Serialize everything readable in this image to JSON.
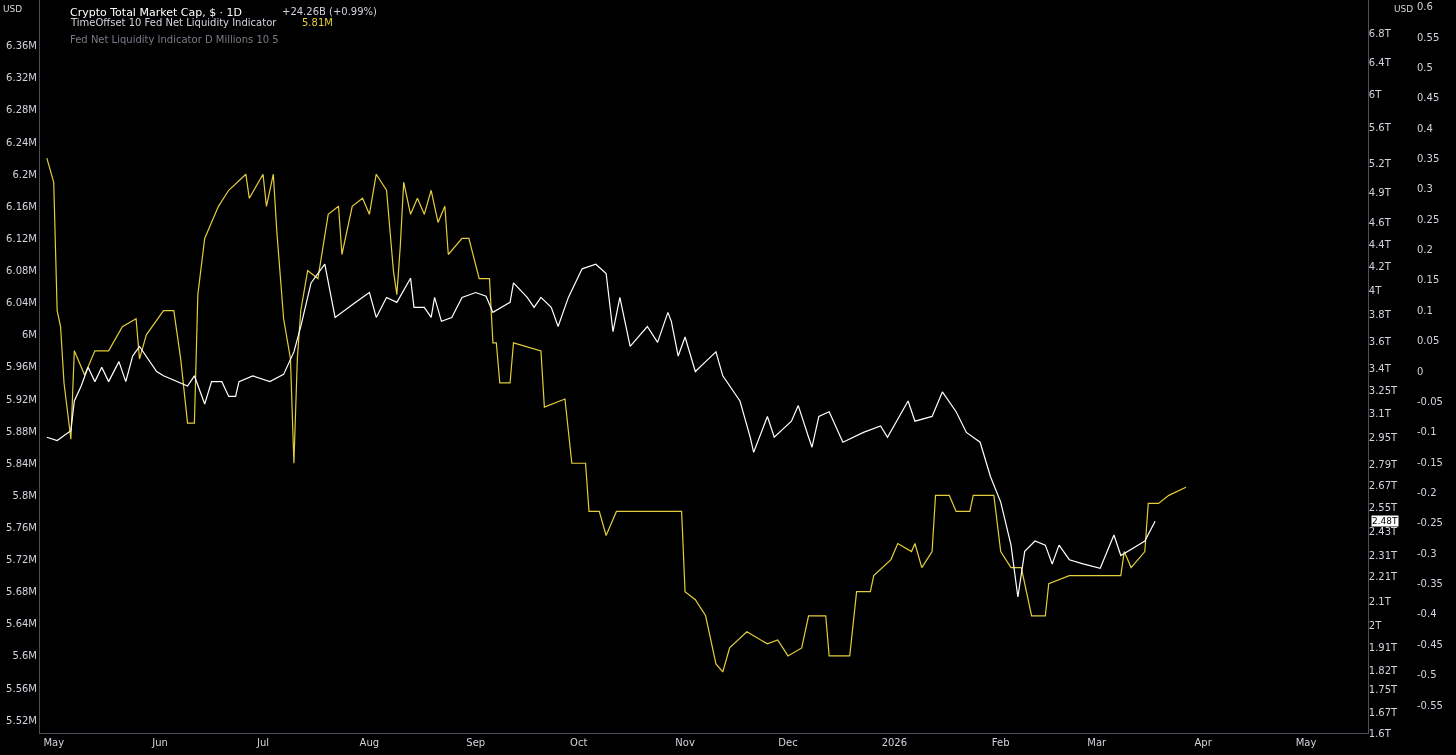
{
  "chart_data": {
    "type": "line",
    "title": "Crypto Total Market Cap, $ · 1D",
    "subtitle": "TimeOffset 10 Fed Net Liquidity Indicator",
    "annotations": [
      "+24.26B (+0.99%)",
      "5.81M",
      "Fed Net Liquidity Indicator D Millions 10 5",
      "USD",
      "USD",
      "2.48T"
    ],
    "series": [
      {
        "color": "#e3cd3c",
        "axis": "y",
        "x": [
          "2025-04-29",
          "2025-05-01",
          "2025-05-02",
          "2025-05-03",
          "2025-05-04",
          "2025-05-06",
          "2025-05-07",
          "2025-05-10",
          "2025-05-13",
          "2025-05-17",
          "2025-05-21",
          "2025-05-25",
          "2025-05-26",
          "2025-05-28",
          "2025-06-02",
          "2025-06-05",
          "2025-06-07",
          "2025-06-09",
          "2025-06-11",
          "2025-06-12",
          "2025-06-14",
          "2025-06-18",
          "2025-06-21",
          "2025-06-26",
          "2025-06-27",
          "2025-07-01",
          "2025-07-02",
          "2025-07-04",
          "2025-07-05",
          "2025-07-07",
          "2025-07-09",
          "2025-07-10",
          "2025-07-11",
          "2025-07-12",
          "2025-07-14",
          "2025-07-17",
          "2025-07-20",
          "2025-07-23",
          "2025-07-24",
          "2025-07-27",
          "2025-07-30",
          "2025-08-01",
          "2025-08-03",
          "2025-08-06",
          "2025-08-08",
          "2025-08-09",
          "2025-08-10",
          "2025-08-11",
          "2025-08-13",
          "2025-08-15",
          "2025-08-17",
          "2025-08-19",
          "2025-08-21",
          "2025-08-23",
          "2025-08-24",
          "2025-08-28",
          "2025-08-30",
          "2025-09-02",
          "2025-09-05",
          "2025-09-06",
          "2025-09-07",
          "2025-09-08",
          "2025-09-11",
          "2025-09-12",
          "2025-09-20",
          "2025-09-21",
          "2025-09-27",
          "2025-09-29",
          "2025-10-03",
          "2025-10-04",
          "2025-10-07",
          "2025-10-09",
          "2025-10-12",
          "2025-10-16",
          "2025-10-31",
          "2025-11-01",
          "2025-11-04",
          "2025-11-07",
          "2025-11-08",
          "2025-11-10",
          "2025-11-12",
          "2025-11-14",
          "2025-11-19",
          "2025-11-25",
          "2025-11-28",
          "2025-12-01",
          "2025-12-05",
          "2025-12-07",
          "2025-12-12",
          "2025-12-13",
          "2025-12-19",
          "2025-12-21",
          "2025-12-25",
          "2025-12-26",
          "2025-12-31",
          "2026-01-02",
          "2026-01-06",
          "2026-01-07",
          "2026-01-09",
          "2026-01-12",
          "2026-01-13",
          "2026-01-17",
          "2026-01-19",
          "2026-01-23",
          "2026-01-24",
          "2026-01-30",
          "2026-02-01",
          "2026-02-04",
          "2026-02-07",
          "2026-02-10",
          "2026-02-14",
          "2026-02-15",
          "2026-02-21",
          "2026-03-08",
          "2026-03-09",
          "2026-03-11",
          "2026-03-15",
          "2026-03-16",
          "2026-03-19",
          "2026-03-22",
          "2026-03-27"
        ],
        "values": [
          6.22,
          6.19,
          6.03,
          6.01,
          5.94,
          5.87,
          5.98,
          5.95,
          5.98,
          5.98,
          6.01,
          6.02,
          5.97,
          6.0,
          6.03,
          6.03,
          5.97,
          5.89,
          5.89,
          6.05,
          6.12,
          6.16,
          6.18,
          6.2,
          6.17,
          6.2,
          6.16,
          6.2,
          6.13,
          6.02,
          5.97,
          5.84,
          5.97,
          6.03,
          6.08,
          6.07,
          6.15,
          6.16,
          6.1,
          6.16,
          6.17,
          6.15,
          6.2,
          6.18,
          6.08,
          6.05,
          6.11,
          6.19,
          6.15,
          6.17,
          6.15,
          6.18,
          6.14,
          6.16,
          6.1,
          6.12,
          6.12,
          6.07,
          6.07,
          5.99,
          5.99,
          5.94,
          5.94,
          5.99,
          5.98,
          5.91,
          5.92,
          5.84,
          5.84,
          5.78,
          5.78,
          5.75,
          5.78,
          5.78,
          5.78,
          5.68,
          5.67,
          5.65,
          5.63,
          5.59,
          5.58,
          5.61,
          5.63,
          5.615,
          5.62,
          5.6,
          5.61,
          5.65,
          5.65,
          5.6,
          5.6,
          5.68,
          5.68,
          5.7,
          5.72,
          5.74,
          5.73,
          5.74,
          5.71,
          5.73,
          5.8,
          5.8,
          5.78,
          5.78,
          5.8,
          5.8,
          5.73,
          5.71,
          5.71,
          5.65,
          5.65,
          5.69,
          5.7,
          5.7,
          5.73,
          5.71,
          5.73,
          5.79,
          5.79,
          5.8,
          5.81
        ]
      },
      {
        "color": "#ffffff",
        "axis": "y2",
        "x": [
          "2025-04-29",
          "2025-05-02",
          "2025-05-06",
          "2025-05-07",
          "2025-05-09",
          "2025-05-11",
          "2025-05-13",
          "2025-05-15",
          "2025-05-17",
          "2025-05-20",
          "2025-05-22",
          "2025-05-24",
          "2025-05-26",
          "2025-05-31",
          "2025-06-02",
          "2025-06-09",
          "2025-06-11",
          "2025-06-14",
          "2025-06-16",
          "2025-06-19",
          "2025-06-21",
          "2025-06-23",
          "2025-06-24",
          "2025-06-28",
          "2025-07-03",
          "2025-07-07",
          "2025-07-10",
          "2025-07-12",
          "2025-07-15",
          "2025-07-19",
          "2025-07-22",
          "2025-07-28",
          "2025-08-01",
          "2025-08-03",
          "2025-08-06",
          "2025-08-09",
          "2025-08-13",
          "2025-08-14",
          "2025-08-17",
          "2025-08-19",
          "2025-08-20",
          "2025-08-22",
          "2025-08-25",
          "2025-08-28",
          "2025-09-01",
          "2025-09-04",
          "2025-09-06",
          "2025-09-11",
          "2025-09-12",
          "2025-09-16",
          "2025-09-18",
          "2025-09-20",
          "2025-09-23",
          "2025-09-25",
          "2025-09-28",
          "2025-10-02",
          "2025-10-06",
          "2025-10-09",
          "2025-10-11",
          "2025-10-13",
          "2025-10-16",
          "2025-10-21",
          "2025-10-24",
          "2025-10-27",
          "2025-10-28",
          "2025-10-30",
          "2025-11-01",
          "2025-11-04",
          "2025-11-07",
          "2025-11-10",
          "2025-11-12",
          "2025-11-17",
          "2025-11-20",
          "2025-11-21",
          "2025-11-25",
          "2025-11-27",
          "2025-12-02",
          "2025-12-04",
          "2025-12-07",
          "2025-12-08",
          "2025-12-10",
          "2025-12-13",
          "2025-12-17",
          "2025-12-23",
          "2025-12-28",
          "2025-12-30",
          "2026-01-05",
          "2026-01-07",
          "2026-01-12",
          "2026-01-15",
          "2026-01-19",
          "2026-01-22",
          "2026-01-26",
          "2026-01-29",
          "2026-02-01",
          "2026-02-04",
          "2026-02-06",
          "2026-02-08",
          "2026-02-11",
          "2026-02-14",
          "2026-02-16",
          "2026-02-18",
          "2026-02-21",
          "2026-02-25",
          "2026-03-02",
          "2026-03-06",
          "2026-03-08",
          "2026-03-13",
          "2026-03-15",
          "2026-03-18"
        ],
        "values": [
          2.95,
          2.93,
          2.99,
          3.18,
          3.28,
          3.41,
          3.31,
          3.41,
          3.31,
          3.45,
          3.31,
          3.49,
          3.56,
          3.38,
          3.35,
          3.28,
          3.35,
          3.16,
          3.31,
          3.31,
          3.21,
          3.21,
          3.31,
          3.35,
          3.31,
          3.36,
          3.52,
          3.71,
          4.06,
          4.22,
          3.78,
          3.9,
          3.98,
          3.78,
          3.94,
          3.9,
          4.1,
          3.86,
          3.86,
          3.78,
          3.94,
          3.75,
          3.78,
          3.94,
          3.98,
          3.95,
          3.82,
          3.9,
          4.06,
          3.94,
          3.86,
          3.94,
          3.86,
          3.71,
          3.94,
          4.18,
          4.22,
          4.14,
          3.67,
          3.94,
          3.56,
          3.71,
          3.59,
          3.82,
          3.75,
          3.49,
          3.63,
          3.38,
          3.45,
          3.52,
          3.35,
          3.18,
          2.95,
          2.86,
          3.08,
          2.95,
          3.05,
          3.15,
          2.95,
          2.89,
          3.08,
          3.11,
          2.92,
          2.98,
          3.02,
          2.95,
          3.18,
          3.05,
          3.08,
          3.24,
          3.11,
          2.98,
          2.92,
          2.72,
          2.58,
          2.36,
          2.12,
          2.33,
          2.38,
          2.36,
          2.27,
          2.36,
          2.29,
          2.27,
          2.25,
          2.41,
          2.31,
          2.36,
          2.38,
          2.48
        ]
      }
    ],
    "xlim": [
      "2025-04-27",
      "2026-05-19"
    ],
    "xticks": [
      {
        "value": "2025-05-01",
        "label": "May"
      },
      {
        "value": "2025-06-01",
        "label": "Jun"
      },
      {
        "value": "2025-07-01",
        "label": "Jul"
      },
      {
        "value": "2025-08-01",
        "label": "Aug"
      },
      {
        "value": "2025-09-01",
        "label": "Sep"
      },
      {
        "value": "2025-10-01",
        "label": "Oct"
      },
      {
        "value": "2025-11-01",
        "label": "Nov"
      },
      {
        "value": "2025-12-01",
        "label": "Dec"
      },
      {
        "value": "2026-01-01",
        "label": "2026"
      },
      {
        "value": "2026-02-01",
        "label": "Feb"
      },
      {
        "value": "2026-03-01",
        "label": "Mar"
      },
      {
        "value": "2026-04-01",
        "label": "Apr"
      },
      {
        "value": "2026-05-01",
        "label": "May"
      }
    ],
    "ylim": [
      5.504,
      6.417
    ],
    "yticks": [
      {
        "value": 6.36,
        "label": "6.36M"
      },
      {
        "value": 6.32,
        "label": "6.32M"
      },
      {
        "value": 6.28,
        "label": "6.28M"
      },
      {
        "value": 6.24,
        "label": "6.24M"
      },
      {
        "value": 6.2,
        "label": "6.2M"
      },
      {
        "value": 6.16,
        "label": "6.16M"
      },
      {
        "value": 6.12,
        "label": "6.12M"
      },
      {
        "value": 6.08,
        "label": "6.08M"
      },
      {
        "value": 6.04,
        "label": "6.04M"
      },
      {
        "value": 6.0,
        "label": "6M"
      },
      {
        "value": 5.96,
        "label": "5.96M"
      },
      {
        "value": 5.92,
        "label": "5.92M"
      },
      {
        "value": 5.88,
        "label": "5.88M"
      },
      {
        "value": 5.84,
        "label": "5.84M"
      },
      {
        "value": 5.8,
        "label": "5.8M"
      },
      {
        "value": 5.76,
        "label": "5.76M"
      },
      {
        "value": 5.72,
        "label": "5.72M"
      },
      {
        "value": 5.68,
        "label": "5.68M"
      },
      {
        "value": 5.64,
        "label": "5.64M"
      },
      {
        "value": 5.6,
        "label": "5.6M"
      },
      {
        "value": 5.56,
        "label": "5.56M"
      },
      {
        "value": 5.52,
        "label": "5.52M"
      }
    ],
    "y2lim": [
      1.6,
      7.29
    ],
    "y2ticks": [
      {
        "value": 6.8,
        "label": "6.8T"
      },
      {
        "value": 6.4,
        "label": "6.4T"
      },
      {
        "value": 6,
        "label": "6T"
      },
      {
        "value": 5.6,
        "label": "5.6T"
      },
      {
        "value": 5.2,
        "label": "5.2T"
      },
      {
        "value": 4.9,
        "label": "4.9T"
      },
      {
        "value": 4.6,
        "label": "4.6T"
      },
      {
        "value": 4.4,
        "label": "4.4T"
      },
      {
        "value": 4.2,
        "label": "4.2T"
      },
      {
        "value": 4,
        "label": "4T"
      },
      {
        "value": 3.8,
        "label": "3.8T"
      },
      {
        "value": 3.6,
        "label": "3.6T"
      },
      {
        "value": 3.4,
        "label": "3.4T"
      },
      {
        "value": 3.25,
        "label": "3.25T"
      },
      {
        "value": 3.1,
        "label": "3.1T"
      },
      {
        "value": 2.95,
        "label": "2.95T"
      },
      {
        "value": 2.79,
        "label": "2.79T"
      },
      {
        "value": 2.67,
        "label": "2.67T"
      },
      {
        "value": 2.55,
        "label": "2.55T"
      },
      {
        "value": 2.43,
        "label": "2.43T"
      },
      {
        "value": 2.31,
        "label": "2.31T"
      },
      {
        "value": 2.21,
        "label": "2.21T"
      },
      {
        "value": 2.1,
        "label": "2.1T"
      },
      {
        "value": 2,
        "label": "2T"
      },
      {
        "value": 1.91,
        "label": "1.91T"
      },
      {
        "value": 1.82,
        "label": "1.82T"
      },
      {
        "value": 1.75,
        "label": "1.75T"
      },
      {
        "value": 1.67,
        "label": "1.67T"
      },
      {
        "value": 1.6,
        "label": "1.6T"
      }
    ],
    "y3lim": [
      -0.596,
      0.611
    ],
    "y3ticks": [
      0.6,
      0.55,
      0.5,
      0.45,
      0.4,
      0.35,
      0.3,
      0.25,
      0.2,
      0.15,
      0.1,
      0.05,
      0,
      -0.05,
      -0.1,
      -0.15,
      -0.2,
      -0.25,
      -0.3,
      -0.35,
      -0.4,
      -0.45,
      -0.5,
      -0.55
    ],
    "log": "y2",
    "grid": false,
    "legend": false,
    "marker": "none",
    "line_style": "solid"
  }
}
